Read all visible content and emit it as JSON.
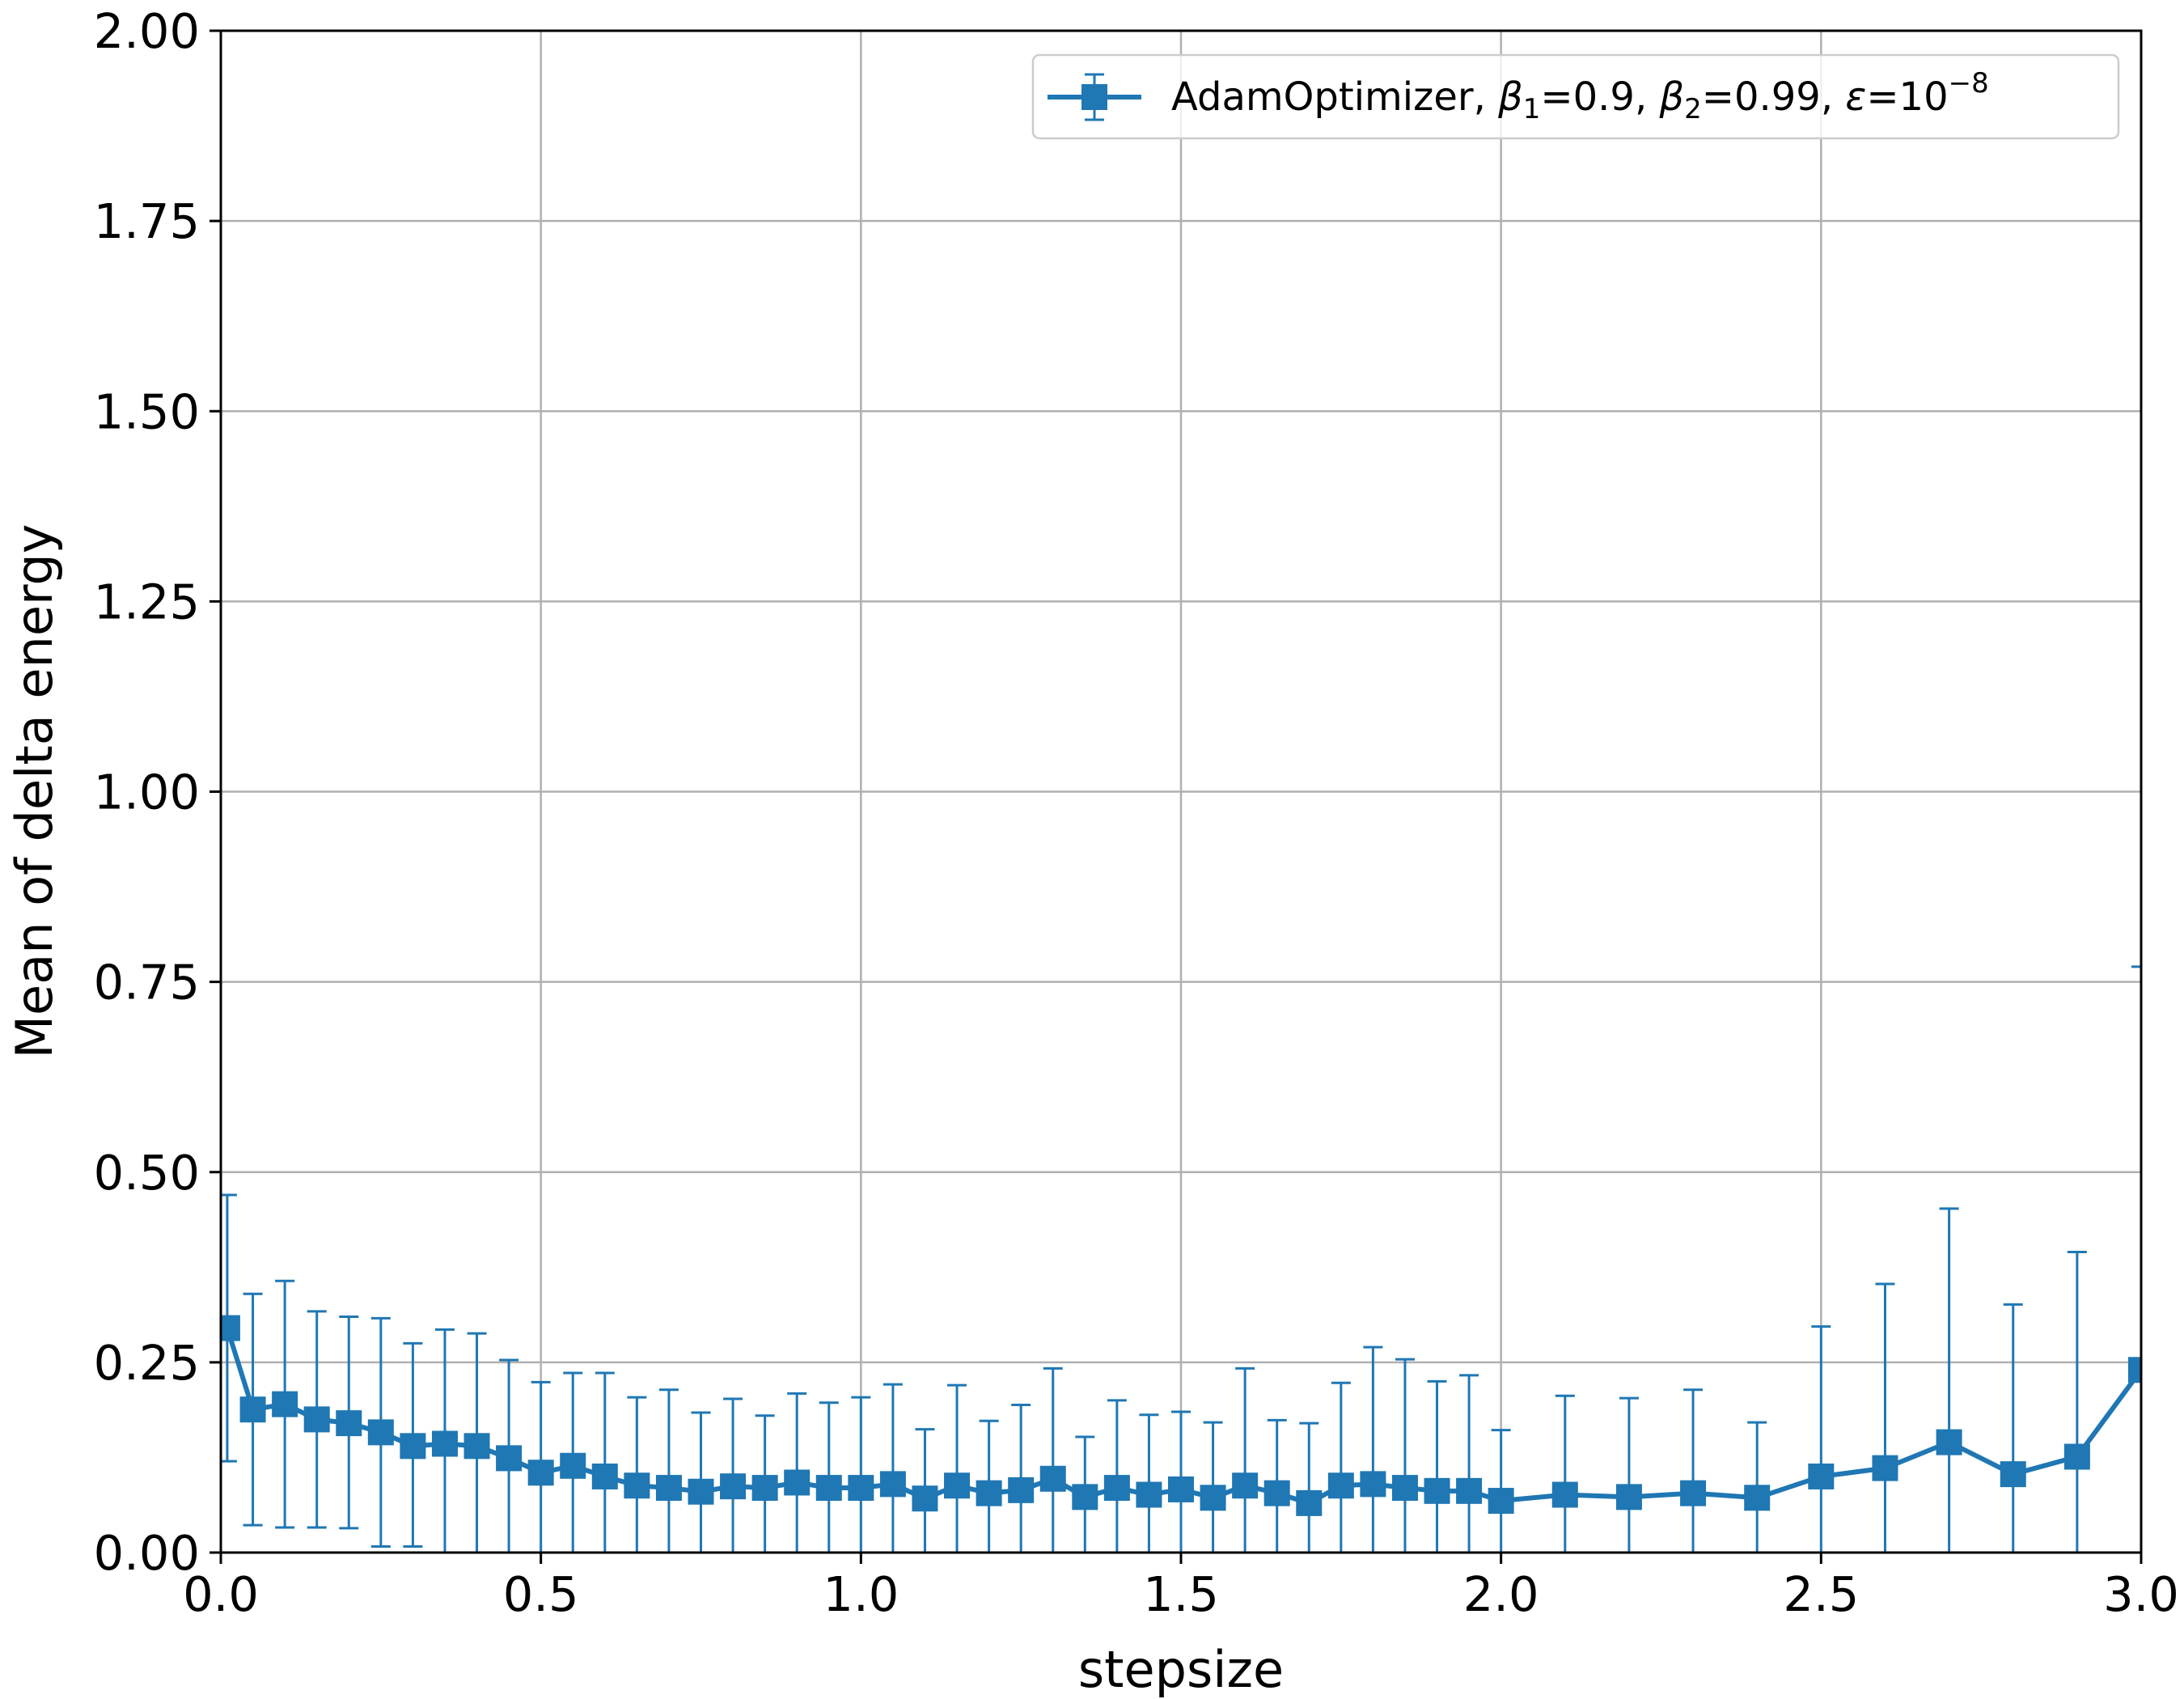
{
  "chart_data": {
    "type": "line",
    "xlabel": "stepsize",
    "ylabel": "Mean of delta energy",
    "xlim": [
      0.0,
      3.0
    ],
    "ylim": [
      0.0,
      2.0
    ],
    "xticks": [
      "0.0",
      "0.5",
      "1.0",
      "1.5",
      "2.0",
      "2.5",
      "3.0"
    ],
    "yticks": [
      "0.00",
      "0.25",
      "0.50",
      "0.75",
      "1.00",
      "1.25",
      "1.50",
      "1.75",
      "2.00"
    ],
    "grid": true,
    "legend_position": "top-right",
    "color": "#1f77b4",
    "series": [
      {
        "name": "AdamOptimizer, β1=0.9, β2=0.99, ε=10−8",
        "legend": {
          "prefix": "AdamOptimizer, ",
          "b1": "β",
          "b1_sub": "1",
          "b1_val": "=0.9, ",
          "b2": "β",
          "b2_sub": "2",
          "b2_val": "=0.99, ",
          "eps": "ε",
          "eps_val": "=10",
          "eps_exp": "−8"
        },
        "marker": "square",
        "x": [
          0.01,
          0.05,
          0.1,
          0.15,
          0.2,
          0.25,
          0.3,
          0.35,
          0.4,
          0.45,
          0.5,
          0.55,
          0.6,
          0.65,
          0.7,
          0.75,
          0.8,
          0.85,
          0.9,
          0.95,
          1.0,
          1.05,
          1.1,
          1.15,
          1.2,
          1.25,
          1.3,
          1.35,
          1.4,
          1.45,
          1.5,
          1.55,
          1.6,
          1.65,
          1.7,
          1.75,
          1.8,
          1.85,
          1.9,
          1.95,
          2.0,
          2.1,
          2.2,
          2.3,
          2.4,
          2.5,
          2.6,
          2.7,
          2.8,
          2.9,
          3.0
        ],
        "y": [
          0.295,
          0.188,
          0.195,
          0.175,
          0.17,
          0.158,
          0.14,
          0.143,
          0.14,
          0.124,
          0.105,
          0.114,
          0.1,
          0.088,
          0.085,
          0.08,
          0.087,
          0.085,
          0.092,
          0.085,
          0.085,
          0.09,
          0.071,
          0.088,
          0.078,
          0.082,
          0.097,
          0.073,
          0.085,
          0.076,
          0.083,
          0.072,
          0.088,
          0.078,
          0.065,
          0.088,
          0.09,
          0.085,
          0.081,
          0.081,
          0.068,
          0.076,
          0.073,
          0.078,
          0.072,
          0.1,
          0.111,
          0.145,
          0.103,
          0.126,
          0.24
        ],
        "yerr_upper": [
          0.47,
          0.34,
          0.357,
          0.317,
          0.31,
          0.308,
          0.275,
          0.293,
          0.288,
          0.253,
          0.224,
          0.236,
          0.236,
          0.204,
          0.214,
          0.184,
          0.202,
          0.18,
          0.209,
          0.197,
          0.204,
          0.221,
          0.162,
          0.22,
          0.173,
          0.194,
          0.242,
          0.152,
          0.2,
          0.181,
          0.185,
          0.171,
          0.242,
          0.174,
          0.17,
          0.223,
          0.27,
          0.254,
          0.225,
          0.233,
          0.161,
          0.206,
          0.203,
          0.214,
          0.171,
          0.297,
          0.353,
          0.452,
          0.326,
          0.395,
          0.77
        ],
        "yerr_lower": [
          0.12,
          0.036,
          0.033,
          0.033,
          0.032,
          0.008,
          0.008,
          0.0,
          0.0,
          0.0,
          0.0,
          0.0,
          0.0,
          0.0,
          0.0,
          0.0,
          0.0,
          0.0,
          0.0,
          0.0,
          0.0,
          0.0,
          0.0,
          0.0,
          0.0,
          0.0,
          0.0,
          0.0,
          0.0,
          0.0,
          0.0,
          0.0,
          0.0,
          0.0,
          0.0,
          0.0,
          0.0,
          0.0,
          0.0,
          0.0,
          0.0,
          0.0,
          0.0,
          0.0,
          0.0,
          0.0,
          0.0,
          0.0,
          0.0,
          0.0,
          0.0
        ]
      }
    ]
  }
}
